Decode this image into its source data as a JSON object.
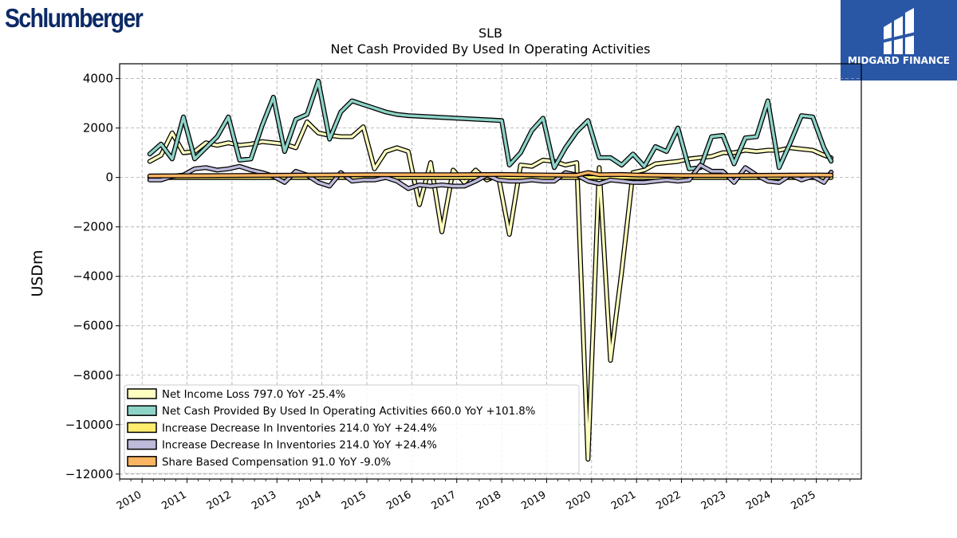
{
  "logos": {
    "left": "Schlumberger",
    "right": "MIDGARD FINANCE"
  },
  "chart_data": {
    "type": "line",
    "title": "SLB",
    "subtitle": "Net Cash Provided By Used In Operating Activities",
    "ylabel": "USDm",
    "ylim": [
      -12200,
      4600
    ],
    "xlim": [
      2009.5,
      2026.0
    ],
    "yticks": [
      4000,
      2000,
      0,
      -2000,
      -4000,
      -6000,
      -8000,
      -10000,
      -12000
    ],
    "ytick_labels": [
      "4000",
      "2000",
      "0",
      "−2000",
      "−4000",
      "−6000",
      "−8000",
      "−10000",
      "−12000"
    ],
    "xticks": [
      2010,
      2011,
      2012,
      2013,
      2014,
      2015,
      2016,
      2017,
      2018,
      2019,
      2020,
      2021,
      2022,
      2023,
      2024,
      2025
    ],
    "xtick_labels": [
      "2010",
      "2011",
      "2012",
      "2013",
      "2014",
      "2015",
      "2016",
      "2017",
      "2018",
      "2019",
      "2020",
      "2021",
      "2022",
      "2023",
      "2024",
      "2025"
    ],
    "grid": true,
    "legend_position": "bottom-left",
    "series": [
      {
        "name": "Net Income Loss  797.0 YoY -25.4%",
        "color": "#ffffbf",
        "x": [
          2010.17,
          2010.42,
          2010.67,
          2010.92,
          2011.17,
          2011.42,
          2011.67,
          2011.92,
          2012.17,
          2012.42,
          2012.67,
          2012.92,
          2013.17,
          2013.42,
          2013.67,
          2013.92,
          2014.17,
          2014.42,
          2014.67,
          2014.92,
          2015.17,
          2015.42,
          2015.67,
          2015.92,
          2016.17,
          2016.42,
          2016.67,
          2016.92,
          2017.17,
          2017.42,
          2017.67,
          2017.92,
          2018.17,
          2018.42,
          2018.67,
          2018.92,
          2019.17,
          2019.42,
          2019.67,
          2019.92,
          2020.17,
          2020.42,
          2020.67,
          2020.92,
          2021.17,
          2021.42,
          2021.67,
          2021.92,
          2022.17,
          2022.42,
          2022.67,
          2022.92,
          2023.17,
          2023.42,
          2023.67,
          2023.92,
          2024.17,
          2024.42,
          2024.67,
          2024.92,
          2025.17,
          2025.33
        ],
        "values": [
          650,
          900,
          1800,
          1000,
          1050,
          1400,
          1300,
          1400,
          1300,
          1350,
          1450,
          1400,
          1350,
          1200,
          2250,
          1800,
          1700,
          1650,
          1650,
          2050,
          350,
          1050,
          1200,
          1050,
          -1100,
          600,
          -2200,
          300,
          -200,
          300,
          -100,
          100,
          -2300,
          500,
          450,
          700,
          650,
          500,
          600,
          -11400,
          400,
          -7400,
          -3800,
          200,
          300,
          550,
          600,
          650,
          750,
          800,
          850,
          1000,
          1000,
          1100,
          1050,
          1100,
          1100,
          1200,
          1150,
          1100,
          900,
          797
        ]
      },
      {
        "name": "Net Cash Provided By Used In Operating Activities  660.0 YoY +101.8%",
        "color": "#8dd3c7",
        "x": [
          2010.17,
          2010.42,
          2010.67,
          2010.92,
          2011.17,
          2011.42,
          2011.67,
          2011.92,
          2012.17,
          2012.42,
          2012.67,
          2012.92,
          2013.17,
          2013.42,
          2013.67,
          2013.92,
          2014.17,
          2014.42,
          2014.67,
          2014.92,
          2015.17,
          2015.42,
          2015.67,
          2015.92,
          2018.0,
          2018.17,
          2018.42,
          2018.67,
          2018.92,
          2019.17,
          2019.42,
          2019.67,
          2019.92,
          2020.17,
          2020.42,
          2020.67,
          2020.92,
          2021.17,
          2021.42,
          2021.67,
          2021.92,
          2022.17,
          2022.42,
          2022.67,
          2022.92,
          2023.17,
          2023.42,
          2023.67,
          2023.92,
          2024.17,
          2024.42,
          2024.67,
          2024.92,
          2025.17,
          2025.33
        ],
        "values": [
          950,
          1350,
          750,
          2450,
          750,
          1200,
          1650,
          2450,
          700,
          750,
          2100,
          3250,
          1050,
          2350,
          2550,
          3900,
          1550,
          2650,
          3100,
          2950,
          2800,
          2650,
          2550,
          2500,
          2300,
          500,
          1000,
          1900,
          2400,
          400,
          1200,
          1850,
          2300,
          800,
          800,
          500,
          950,
          450,
          1250,
          1050,
          2000,
          350,
          400,
          1650,
          1700,
          550,
          1600,
          1650,
          3100,
          400,
          1400,
          2500,
          2450,
          1200,
          660
        ]
      },
      {
        "name": "Increase Decrease In Inventories  214.0 YoY +24.4%",
        "color": "#ffed6f",
        "x": [
          2010.17,
          2025.33
        ],
        "values": [
          0,
          0
        ]
      },
      {
        "name": "Increase Decrease In Inventories  214.0 YoY +24.4%",
        "color": "#bebada",
        "x": [
          2010.17,
          2010.42,
          2010.67,
          2010.92,
          2011.17,
          2011.42,
          2011.67,
          2011.92,
          2012.17,
          2012.42,
          2012.67,
          2012.92,
          2013.17,
          2013.42,
          2013.67,
          2013.92,
          2014.17,
          2014.42,
          2014.67,
          2014.92,
          2015.17,
          2015.42,
          2015.67,
          2015.92,
          2016.17,
          2016.42,
          2016.67,
          2016.92,
          2017.17,
          2017.42,
          2017.67,
          2017.92,
          2018.17,
          2018.42,
          2018.67,
          2018.92,
          2019.17,
          2019.42,
          2019.67,
          2019.92,
          2020.17,
          2020.42,
          2020.67,
          2020.92,
          2021.17,
          2021.42,
          2021.67,
          2021.92,
          2022.17,
          2022.42,
          2022.67,
          2022.92,
          2023.17,
          2023.42,
          2023.67,
          2023.92,
          2024.17,
          2024.42,
          2024.67,
          2024.92,
          2025.17,
          2025.33
        ],
        "values": [
          -100,
          -100,
          50,
          100,
          350,
          400,
          300,
          350,
          450,
          300,
          200,
          50,
          -200,
          250,
          100,
          -200,
          -350,
          200,
          -150,
          -100,
          -100,
          0,
          -150,
          -450,
          -300,
          -350,
          -300,
          -350,
          -350,
          -150,
          100,
          -100,
          -150,
          -150,
          -100,
          -150,
          -150,
          200,
          100,
          -150,
          -250,
          -100,
          -150,
          -200,
          -200,
          -150,
          -100,
          -150,
          -100,
          500,
          250,
          250,
          -200,
          400,
          100,
          -150,
          -200,
          100,
          -100,
          50,
          -200,
          214
        ]
      },
      {
        "name": "Share Based Compensation  91.0 YoY -9.0%",
        "color": "#fdb462",
        "x": [
          2010.17,
          2011.0,
          2012.0,
          2013.0,
          2014.0,
          2015.0,
          2016.0,
          2017.0,
          2018.0,
          2019.0,
          2019.67,
          2019.92,
          2020.17,
          2020.67,
          2021.0,
          2022.0,
          2023.0,
          2024.0,
          2025.0,
          2025.33
        ],
        "values": [
          60,
          70,
          80,
          90,
          100,
          110,
          110,
          110,
          120,
          100,
          90,
          200,
          110,
          120,
          100,
          80,
          80,
          90,
          100,
          91
        ]
      }
    ]
  }
}
